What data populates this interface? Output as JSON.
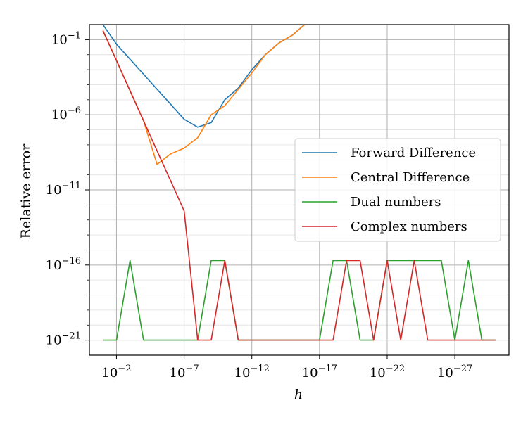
{
  "chart_data": {
    "type": "line",
    "xscale": "log",
    "yscale": "log",
    "x_reversed": true,
    "xlabel": "h",
    "ylabel": "Relative error",
    "xlim": [
      1.0,
      1e-31
    ],
    "ylim": [
      1e-22,
      1.0
    ],
    "xticks": [
      {
        "value": 0.01,
        "base": "10",
        "exp": "−2"
      },
      {
        "value": 1e-07,
        "base": "10",
        "exp": "−7"
      },
      {
        "value": 1e-12,
        "base": "10",
        "exp": "−12"
      },
      {
        "value": 1e-17,
        "base": "10",
        "exp": "−17"
      },
      {
        "value": 1e-22,
        "base": "10",
        "exp": "−22"
      },
      {
        "value": 1e-27,
        "base": "10",
        "exp": "−27"
      }
    ],
    "yticks": [
      {
        "value": 0.1,
        "base": "10",
        "exp": "−1"
      },
      {
        "value": 1e-06,
        "base": "10",
        "exp": "−6"
      },
      {
        "value": 1e-11,
        "base": "10",
        "exp": "−11"
      },
      {
        "value": 1e-16,
        "base": "10",
        "exp": "−16"
      },
      {
        "value": 1e-21,
        "base": "10",
        "exp": "−21"
      }
    ],
    "grid": true,
    "legend_position": "center-right",
    "series": [
      {
        "name": "Forward Difference",
        "color": "#1f77b4",
        "x": [
          0.1,
          0.01,
          0.001,
          0.0001,
          1e-05,
          1e-06,
          1e-07,
          1e-08,
          1e-09,
          1e-10,
          1e-11,
          1e-12,
          1e-13,
          1e-14,
          1e-15,
          1e-16
        ],
        "y": [
          1.0,
          0.05,
          0.005,
          0.0005,
          5e-05,
          5e-06,
          5e-07,
          1.5e-07,
          3e-07,
          1e-05,
          6e-05,
          0.001,
          0.01,
          0.06,
          0.2,
          1.2
        ]
      },
      {
        "name": "Central Difference",
        "color": "#ff7f0e",
        "x": [
          0.1,
          0.01,
          0.001,
          0.0001,
          1e-05,
          1e-06,
          1e-07,
          1e-08,
          1e-09,
          1e-10,
          1e-11,
          1e-12,
          1e-13,
          1e-14,
          1e-15,
          1e-16
        ],
        "y": [
          0.4,
          0.004,
          4e-05,
          4e-07,
          5e-10,
          2.5e-09,
          6e-09,
          3e-08,
          1e-06,
          4e-06,
          5e-05,
          0.0006,
          0.01,
          0.06,
          0.2,
          1.2
        ]
      },
      {
        "name": "Dual numbers",
        "color": "#2ca02c",
        "x": [
          0.1,
          0.01,
          0.001,
          0.0001,
          1e-05,
          1e-06,
          1e-07,
          1e-08,
          1e-09,
          1e-10,
          1e-11,
          1e-12,
          1e-13,
          1e-14,
          1e-15,
          1e-16,
          1e-17,
          1e-18,
          1e-19,
          1e-20,
          1e-21,
          1e-22,
          1e-23,
          1e-24,
          1e-25,
          1e-26,
          1e-27,
          1e-28,
          1e-29,
          1e-30
        ],
        "y": [
          1e-21,
          1e-21,
          2e-16,
          1e-21,
          1e-21,
          1e-21,
          1e-21,
          1e-21,
          2e-16,
          2e-16,
          1e-21,
          1e-21,
          1e-21,
          1e-21,
          1e-21,
          1e-21,
          1e-21,
          2e-16,
          2e-16,
          1e-21,
          1e-21,
          2e-16,
          2e-16,
          2e-16,
          2e-16,
          2e-16,
          1e-21,
          2e-16,
          1e-21,
          1e-21
        ]
      },
      {
        "name": "Complex numbers",
        "color": "#d62728",
        "x": [
          0.1,
          0.01,
          0.001,
          0.0001,
          1e-05,
          1e-06,
          1e-07,
          1e-08,
          1e-09,
          1e-10,
          1e-11,
          1e-12,
          1e-13,
          1e-14,
          1e-15,
          1e-16,
          1e-17,
          1e-18,
          1e-19,
          1e-20,
          1e-21,
          1e-22,
          1e-23,
          1e-24,
          1e-25,
          1e-26,
          1e-27,
          1e-28,
          1e-29,
          1e-30
        ],
        "y": [
          0.4,
          0.004,
          4e-05,
          4e-07,
          4e-09,
          4e-11,
          4e-13,
          1e-21,
          1e-21,
          2e-16,
          1e-21,
          1e-21,
          1e-21,
          1e-21,
          1e-21,
          1e-21,
          1e-21,
          1e-21,
          2e-16,
          2e-16,
          1e-21,
          2e-16,
          1e-21,
          2e-16,
          1e-21,
          1e-21,
          1e-21,
          1e-21,
          1e-21,
          1e-21
        ]
      }
    ]
  }
}
